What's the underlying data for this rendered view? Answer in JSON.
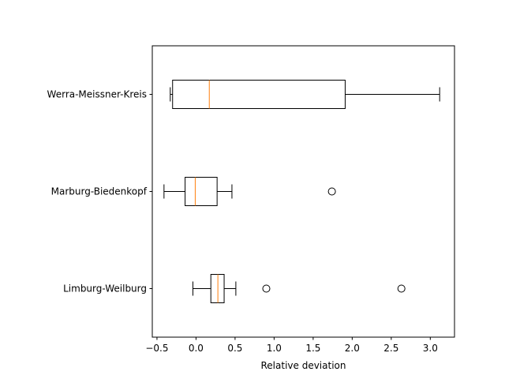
{
  "chart_data": {
    "type": "boxplot",
    "orientation": "horizontal",
    "title": "",
    "xlabel": "Relative deviation",
    "ylabel": "",
    "xlim": [
      -0.56,
      3.31
    ],
    "xticks": [
      -0.5,
      0.0,
      0.5,
      1.0,
      1.5,
      2.0,
      2.5,
      3.0
    ],
    "xtick_labels": [
      "−0.5",
      "0.0",
      "0.5",
      "1.0",
      "1.5",
      "2.0",
      "2.5",
      "3.0"
    ],
    "grid": false,
    "categories": [
      "Limburg-Weilburg",
      "Marburg-Biedenkopf",
      "Werra-Meissner-Kreis"
    ],
    "boxes": [
      {
        "name": "Limburg-Weilburg",
        "whisker_low": -0.04,
        "q1": 0.19,
        "median": 0.28,
        "q3": 0.36,
        "whisker_high": 0.51,
        "outliers": [
          0.9,
          2.63
        ]
      },
      {
        "name": "Marburg-Biedenkopf",
        "whisker_low": -0.41,
        "q1": -0.14,
        "median": -0.01,
        "q3": 0.27,
        "whisker_high": 0.46,
        "outliers": [
          1.74
        ]
      },
      {
        "name": "Werra-Meissner-Kreis",
        "whisker_low": -0.33,
        "q1": -0.3,
        "median": 0.17,
        "q3": 1.91,
        "whisker_high": 3.12,
        "outliers": []
      }
    ],
    "colors": {
      "box": "#000000",
      "median": "#ff7f0e",
      "outlier": "#000000"
    }
  }
}
